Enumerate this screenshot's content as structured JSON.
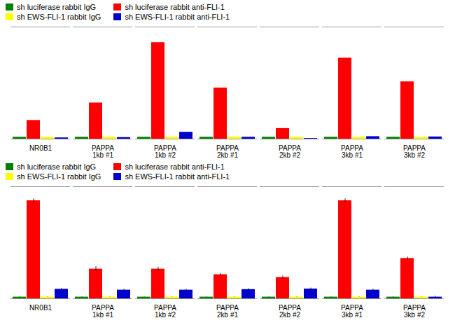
{
  "chart_data": [
    {
      "type": "bar",
      "categories": [
        "NR0B1",
        "PAPPA\n1kb #1",
        "PAPPA\n1kb #2",
        "PAPPA\n2kb #1",
        "PAPPA\n2kb #2",
        "PAPPA\n3kb #1",
        "PAPPA\n3kb #2"
      ],
      "series": [
        {
          "name": "sh luciferase rabbit IgG",
          "color": "#008000",
          "values": [
            0.3,
            0.3,
            0.3,
            0.3,
            0.3,
            0.3,
            0.3
          ]
        },
        {
          "name": "sh luciferase rabbit anti-FLI-1",
          "color": "#FF0000",
          "values": [
            3.0,
            5.8,
            15.5,
            8.2,
            1.7,
            13.0,
            9.2
          ]
        },
        {
          "name": "sh EWS-FLI-1 rabbit IgG",
          "color": "#FFFF00",
          "values": [
            0.3,
            0.3,
            0.3,
            0.3,
            0.3,
            0.3,
            0.3
          ]
        },
        {
          "name": "sh EWS-FLI-1 rabbit anti-FLI-1",
          "color": "#0000CC",
          "values": [
            0.2,
            0.25,
            1.1,
            0.3,
            0.1,
            0.4,
            0.35
          ]
        }
      ],
      "ylim": [
        0,
        18
      ],
      "tick_labels": "x",
      "grid": false,
      "legend": "upper left"
    },
    {
      "type": "bar",
      "categories": [
        "NR0B1",
        "PAPPA\n1kb #1",
        "PAPPA\n1kb #2",
        "PAPPA\n2kb #1",
        "PAPPA\n2kb #2",
        "PAPPA\n3kb #1",
        "PAPPA\n3kb #2"
      ],
      "series": [
        {
          "name": "sh luciferase rabbit IgG",
          "color": "#008000",
          "values": [
            0.3,
            0.3,
            0.3,
            0.3,
            0.3,
            0.3,
            0.3
          ],
          "errors": [
            0.04,
            0.04,
            0.04,
            0.04,
            0.04,
            0.04,
            0.04
          ]
        },
        {
          "name": "sh luciferase rabbit anti-FLI-1",
          "color": "#FF0000",
          "values": [
            17.5,
            5.3,
            5.3,
            4.3,
            3.8,
            17.5,
            7.2
          ],
          "errors": [
            0.35,
            0.45,
            0.38,
            0.28,
            0.28,
            0.35,
            0.28
          ]
        },
        {
          "name": "sh EWS-FLI-1 rabbit IgG",
          "color": "#FFFF00",
          "values": [
            0.3,
            0.3,
            0.3,
            0.3,
            0.3,
            0.3,
            0.3
          ],
          "errors": [
            0.04,
            0.04,
            0.04,
            0.04,
            0.04,
            0.04,
            0.04
          ]
        },
        {
          "name": "sh EWS-FLI-1 rabbit anti-FLI-1",
          "color": "#0000CC",
          "values": [
            1.7,
            1.55,
            1.55,
            1.65,
            1.75,
            1.55,
            0.3
          ],
          "errors": [
            0.18,
            0.18,
            0.18,
            0.18,
            0.18,
            0.18,
            0.18
          ]
        }
      ],
      "ylim": [
        0,
        20
      ],
      "tick_labels": "x",
      "grid": false,
      "legend": "upper left"
    }
  ]
}
